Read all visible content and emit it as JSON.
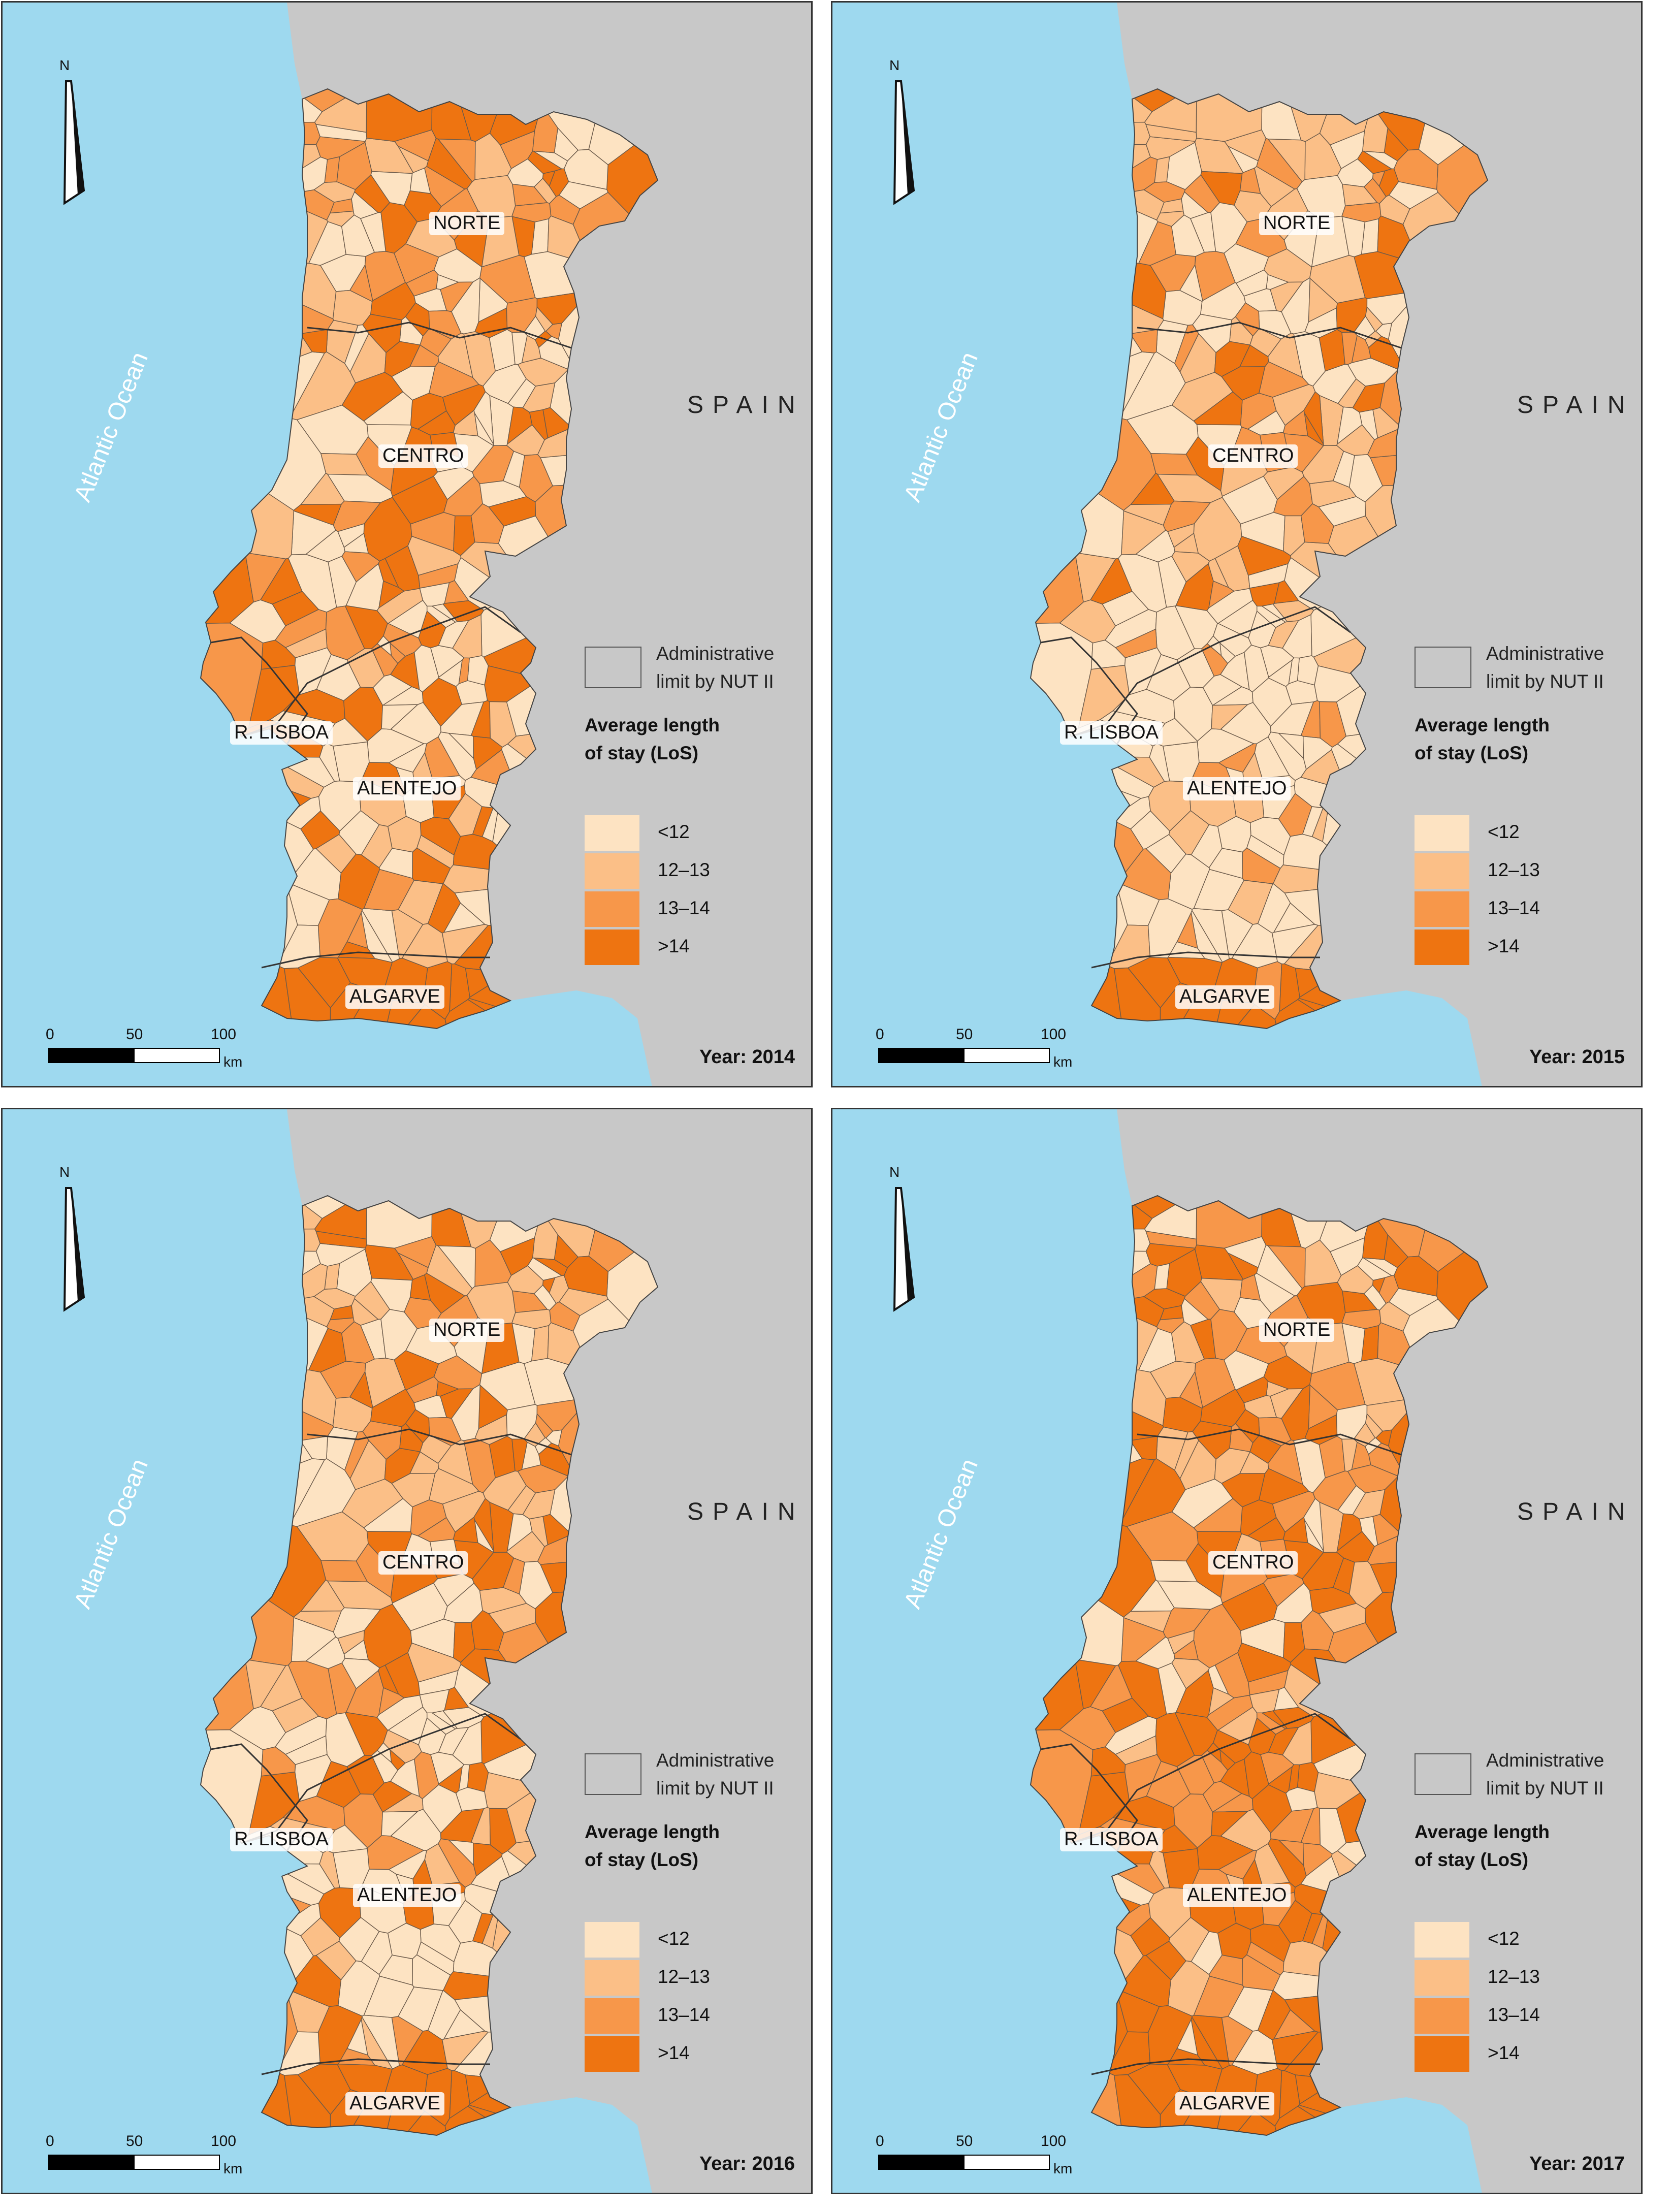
{
  "map_common": {
    "country_label": "SPAIN",
    "ocean_label": "Atlantic Ocean",
    "north_label": "N",
    "admin_legend_text_1": "Administrative",
    "admin_legend_text_2": "limit by NUT II",
    "legend_title_1": "Average length",
    "legend_title_2": "of stay (LoS)",
    "scale_ticks": [
      "0",
      "50",
      "100"
    ],
    "scale_unit": "km",
    "regions": [
      "NORTE",
      "CENTRO",
      "R. LISBOA",
      "ALENTEJO",
      "ALGARVE"
    ],
    "classes": [
      {
        "label": "<12",
        "color": "#fde3c2"
      },
      {
        "label": "12–13",
        "color": "#fbbf87"
      },
      {
        "label": "13–14",
        "color": "#f7974a"
      },
      {
        "label": ">14",
        "color": "#ee7411"
      }
    ],
    "colors": {
      "ocean": "#9ed9ef",
      "land_outside": "#c8c8c8"
    }
  },
  "panels": [
    {
      "year_label": "Year: 2014"
    },
    {
      "year_label": "Year: 2015"
    },
    {
      "year_label": "Year: 2016"
    },
    {
      "year_label": "Year: 2017"
    }
  ]
}
